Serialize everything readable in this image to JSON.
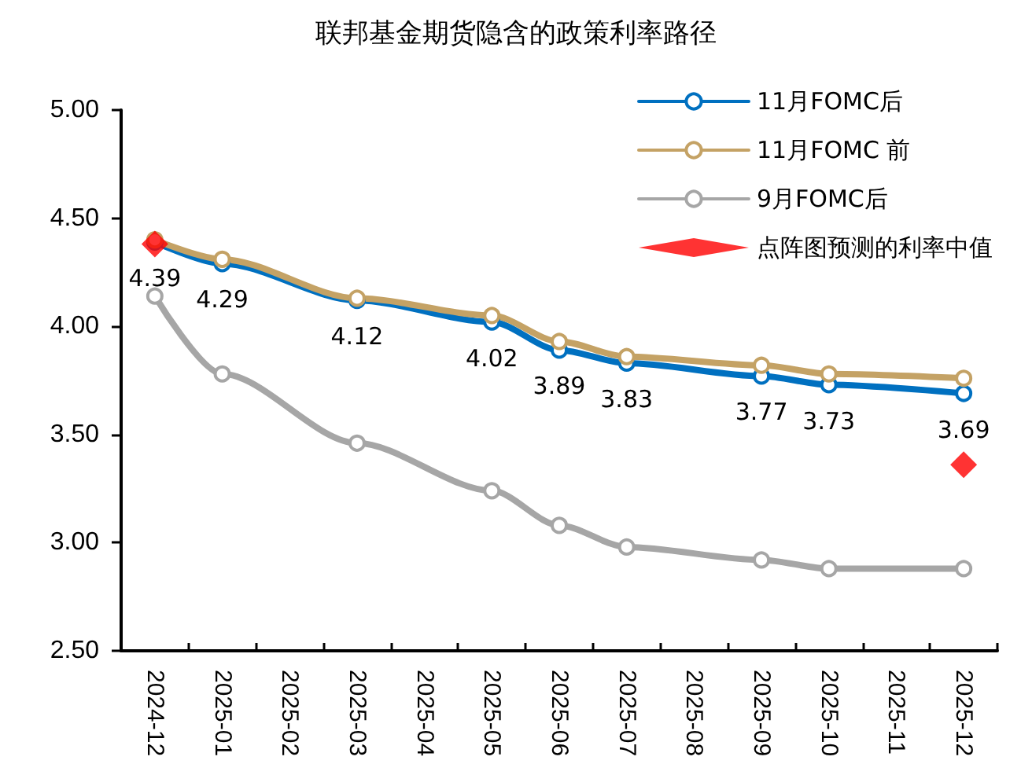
{
  "chart_data": {
    "type": "line",
    "title": "联邦基金期货隐含的政策利率路径",
    "categories": [
      "2024-12",
      "2025-01",
      "2025-02",
      "2025-03",
      "2025-04",
      "2025-05",
      "2025-06",
      "2025-07",
      "2025-08",
      "2025-09",
      "2025-10",
      "2025-11",
      "2025-12"
    ],
    "series": [
      {
        "name": "11月FOMC后",
        "color": "#0070c0",
        "values": [
          4.39,
          4.29,
          null,
          4.12,
          null,
          4.02,
          3.89,
          3.83,
          null,
          3.77,
          3.73,
          null,
          3.69
        ],
        "value_labels": [
          "4.39",
          "4.29",
          null,
          "4.12",
          null,
          "4.02",
          "3.89",
          "3.83",
          null,
          "3.77",
          "3.73",
          null,
          "3.69"
        ]
      },
      {
        "name": "11月FOMC 前",
        "color": "#c4a265",
        "values": [
          4.4,
          4.31,
          null,
          4.13,
          null,
          4.05,
          3.93,
          3.86,
          null,
          3.82,
          3.78,
          null,
          3.76
        ]
      },
      {
        "name": "9月FOMC后",
        "color": "#a6a6a6",
        "values": [
          4.14,
          3.78,
          null,
          3.46,
          null,
          3.24,
          3.08,
          2.98,
          null,
          2.92,
          2.88,
          null,
          2.88
        ]
      },
      {
        "name": "点阵图预测的利率中值",
        "type": "scatter",
        "marker": "diamond",
        "color": "#ff0000",
        "values": [
          4.38,
          null,
          null,
          null,
          null,
          null,
          null,
          null,
          null,
          null,
          null,
          null,
          3.36
        ]
      }
    ],
    "ylim": [
      2.5,
      5
    ],
    "yticks": [
      {
        "value": 2.5,
        "label": "2.50"
      },
      {
        "value": 3,
        "label": "3.00"
      },
      {
        "value": 3.5,
        "label": "3.50"
      },
      {
        "value": 4,
        "label": "4.00"
      },
      {
        "value": 4.5,
        "label": "4.50"
      },
      {
        "value": 5,
        "label": "5.00"
      }
    ],
    "grid": false,
    "legend": "top right",
    "marker": "circle"
  }
}
